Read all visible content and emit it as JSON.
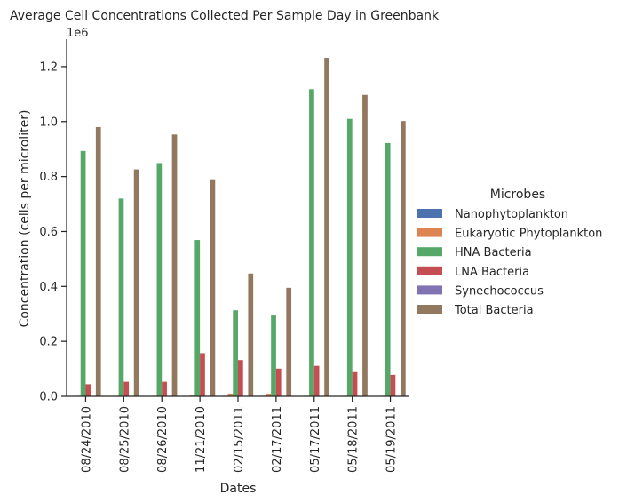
{
  "chart_data": {
    "type": "bar",
    "title": "Average Cell Concentrations Collected Per Sample Day in Greenbank",
    "xlabel": "Dates",
    "ylabel": "Concentration (cells per microliter)",
    "offset_label": "1e6",
    "ylim": [
      0,
      1.3
    ],
    "yticks": [
      "0.0",
      "0.2",
      "0.4",
      "0.6",
      "0.8",
      "1.0",
      "1.2"
    ],
    "categories": [
      "08/24/2010",
      "08/25/2010",
      "08/26/2010",
      "11/21/2010",
      "02/15/2011",
      "02/17/2011",
      "05/17/2011",
      "05/18/2011",
      "05/19/2011"
    ],
    "legend": {
      "title": "Microbes",
      "placement": "center-right"
    },
    "series": [
      {
        "name": "Nanophytoplankton",
        "color": "#4c72b0",
        "values": [
          0.001,
          0.001,
          0.001,
          0.001,
          0.002,
          0.002,
          0.001,
          0.001,
          0.001
        ]
      },
      {
        "name": "Eukaryotic Phytoplankton",
        "color": "#dd8452",
        "values": [
          0.002,
          0.002,
          0.002,
          0.003,
          0.01,
          0.01,
          0.002,
          0.002,
          0.002
        ]
      },
      {
        "name": "HNA Bacteria",
        "color": "#55a868",
        "values": [
          0.893,
          0.72,
          0.849,
          0.569,
          0.313,
          0.294,
          1.118,
          1.01,
          0.922
        ]
      },
      {
        "name": "LNA Bacteria",
        "color": "#c44e52",
        "values": [
          0.044,
          0.053,
          0.053,
          0.157,
          0.132,
          0.101,
          0.111,
          0.088,
          0.078
        ]
      },
      {
        "name": "Synechococcus",
        "color": "#8172b3",
        "values": [
          0.001,
          0.001,
          0.001,
          0.001,
          0.001,
          0.001,
          0.001,
          0.001,
          0.001
        ]
      },
      {
        "name": "Total Bacteria",
        "color": "#937860",
        "values": [
          0.98,
          0.826,
          0.953,
          0.79,
          0.447,
          0.395,
          1.232,
          1.097,
          1.002
        ]
      }
    ]
  }
}
